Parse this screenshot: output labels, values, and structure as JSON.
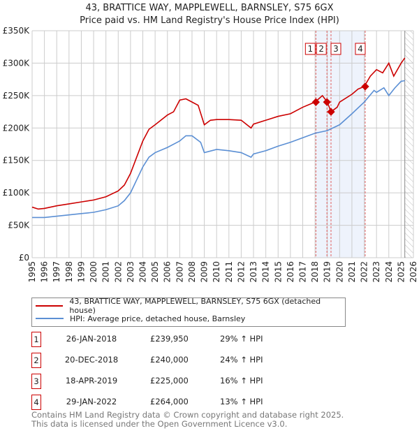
{
  "title": "43, BRATTICE WAY, MAPPLEWELL, BARNSLEY, S75 6GX",
  "subtitle": "Price paid vs. HM Land Registry's House Price Index (HPI)",
  "colors": {
    "property": "#cc0000",
    "hpi": "#5b8fd4",
    "shade": "#eef3fc"
  },
  "chart_data": {
    "type": "line",
    "title": "43, BRATTICE WAY, MAPPLEWELL, BARNSLEY, S75 6GX",
    "xlim": [
      1995,
      2026
    ],
    "ylim": [
      0,
      350000
    ],
    "x_ticks": [
      "1995",
      "1996",
      "1997",
      "1998",
      "1999",
      "2000",
      "2001",
      "2002",
      "2003",
      "2004",
      "2005",
      "2006",
      "2007",
      "2008",
      "2009",
      "2010",
      "2011",
      "2012",
      "2013",
      "2014",
      "2015",
      "2016",
      "2017",
      "2018",
      "2019",
      "2020",
      "2021",
      "2022",
      "2023",
      "2024",
      "2025",
      "2026"
    ],
    "y_ticks": [
      {
        "v": 0,
        "label": "£0"
      },
      {
        "v": 50000,
        "label": "£50K"
      },
      {
        "v": 100000,
        "label": "£100K"
      },
      {
        "v": 150000,
        "label": "£150K"
      },
      {
        "v": 200000,
        "label": "£200K"
      },
      {
        "v": 250000,
        "label": "£250K"
      },
      {
        "v": 300000,
        "label": "£300K"
      },
      {
        "v": 350000,
        "label": "£350K"
      }
    ],
    "series": [
      {
        "name": "43, BRATTICE WAY, MAPPLEWELL, BARNSLEY, S75 6GX (detached house)",
        "points": [
          [
            1995,
            78
          ],
          [
            1995.5,
            75
          ],
          [
            1996,
            76
          ],
          [
            1997,
            80
          ],
          [
            1998,
            83
          ],
          [
            1999,
            86
          ],
          [
            2000,
            89
          ],
          [
            2001,
            94
          ],
          [
            2002,
            103
          ],
          [
            2002.5,
            112
          ],
          [
            2003,
            130
          ],
          [
            2003.5,
            155
          ],
          [
            2004,
            180
          ],
          [
            2004.5,
            198
          ],
          [
            2005,
            205
          ],
          [
            2006,
            220
          ],
          [
            2006.5,
            225
          ],
          [
            2007,
            243
          ],
          [
            2007.5,
            245
          ],
          [
            2008,
            240
          ],
          [
            2008.5,
            235
          ],
          [
            2009,
            205
          ],
          [
            2009.5,
            212
          ],
          [
            2010,
            213
          ],
          [
            2011,
            213
          ],
          [
            2012,
            212
          ],
          [
            2012.8,
            200
          ],
          [
            2013,
            206
          ],
          [
            2014,
            212
          ],
          [
            2015,
            218
          ],
          [
            2016,
            222
          ],
          [
            2017,
            232
          ],
          [
            2018,
            240
          ],
          [
            2018.6,
            250
          ],
          [
            2019,
            240
          ],
          [
            2019.3,
            225
          ],
          [
            2019.8,
            232
          ],
          [
            2020,
            240
          ],
          [
            2021,
            252
          ],
          [
            2021.5,
            260
          ],
          [
            2022,
            264
          ],
          [
            2022.5,
            280
          ],
          [
            2023,
            290
          ],
          [
            2023.5,
            285
          ],
          [
            2024,
            300
          ],
          [
            2024.4,
            280
          ],
          [
            2025,
            300
          ],
          [
            2025.3,
            308
          ]
        ]
      },
      {
        "name": "HPI: Average price, detached house, Barnsley",
        "points": [
          [
            1995,
            62
          ],
          [
            1996,
            62
          ],
          [
            1997,
            64
          ],
          [
            1998,
            66
          ],
          [
            1999,
            68
          ],
          [
            2000,
            70
          ],
          [
            2001,
            74
          ],
          [
            2002,
            80
          ],
          [
            2002.5,
            88
          ],
          [
            2003,
            100
          ],
          [
            2003.5,
            120
          ],
          [
            2004,
            140
          ],
          [
            2004.5,
            155
          ],
          [
            2005,
            162
          ],
          [
            2006,
            170
          ],
          [
            2007,
            180
          ],
          [
            2007.5,
            188
          ],
          [
            2008,
            188
          ],
          [
            2008.7,
            178
          ],
          [
            2009,
            162
          ],
          [
            2010,
            167
          ],
          [
            2011,
            165
          ],
          [
            2012,
            162
          ],
          [
            2012.8,
            155
          ],
          [
            2013,
            160
          ],
          [
            2014,
            165
          ],
          [
            2015,
            172
          ],
          [
            2016,
            178
          ],
          [
            2017,
            185
          ],
          [
            2018,
            192
          ],
          [
            2019,
            196
          ],
          [
            2020,
            205
          ],
          [
            2021,
            222
          ],
          [
            2022,
            240
          ],
          [
            2022.8,
            258
          ],
          [
            2023,
            255
          ],
          [
            2023.6,
            262
          ],
          [
            2024,
            250
          ],
          [
            2024.5,
            262
          ],
          [
            2025,
            272
          ],
          [
            2025.3,
            273
          ]
        ]
      }
    ],
    "sales": [
      {
        "n": "1",
        "x": 2018.07,
        "v": 239950
      },
      {
        "n": "2",
        "x": 2018.97,
        "v": 240000
      },
      {
        "n": "3",
        "x": 2019.3,
        "v": 225000
      },
      {
        "n": "4",
        "x": 2022.08,
        "v": 264000
      }
    ],
    "shaded_range": [
      2018.07,
      2022.08
    ],
    "data_end": 2025.3
  },
  "legend": {
    "property": "43, BRATTICE WAY, MAPPLEWELL, BARNSLEY, S75 6GX (detached house)",
    "hpi": "HPI: Average price, detached house, Barnsley"
  },
  "table": [
    {
      "n": "1",
      "date": "26-JAN-2018",
      "price": "£239,950",
      "hpi": "29% ↑ HPI"
    },
    {
      "n": "2",
      "date": "20-DEC-2018",
      "price": "£240,000",
      "hpi": "24% ↑ HPI"
    },
    {
      "n": "3",
      "date": "18-APR-2019",
      "price": "£225,000",
      "hpi": "16% ↑ HPI"
    },
    {
      "n": "4",
      "date": "29-JAN-2022",
      "price": "£264,000",
      "hpi": "13% ↑ HPI"
    }
  ],
  "footer": {
    "line1": "Contains HM Land Registry data © Crown copyright and database right 2025.",
    "line2": "This data is licensed under the Open Government Licence v3.0."
  }
}
